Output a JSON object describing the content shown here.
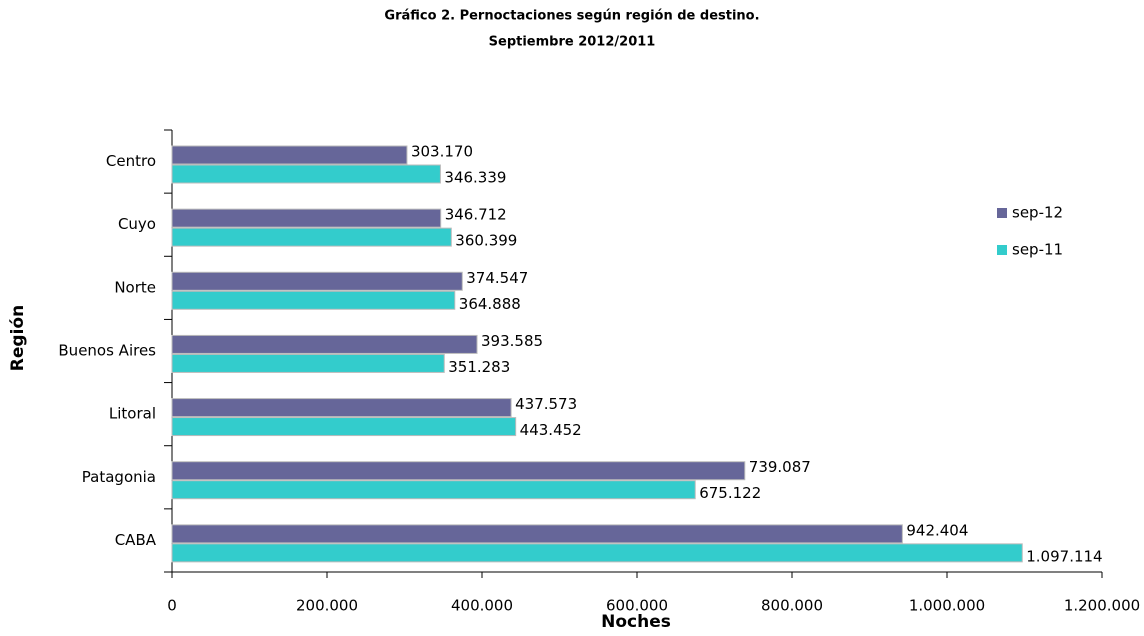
{
  "chart_data": {
    "type": "hbar",
    "title": "Gráfico 2. Pernoctaciones según región de destino.",
    "subtitle": "Septiembre 2012/2011",
    "x_label": "Noches",
    "y_label": "Región",
    "categories": [
      "Centro",
      "Cuyo",
      "Norte",
      "Buenos Aires",
      "Litoral",
      "Patagonia",
      "CABA"
    ],
    "series": [
      {
        "name": "sep-12",
        "color": "#666699",
        "values": [
          303170,
          346712,
          374547,
          393585,
          437573,
          739087,
          942404
        ],
        "value_labels": [
          "303.170",
          "346.712",
          "374.547",
          "393.585",
          "437.573",
          "739.087",
          "942.404"
        ]
      },
      {
        "name": "sep-11",
        "color": "#33cccc",
        "values": [
          346339,
          360399,
          364888,
          351283,
          443452,
          675122,
          1097114
        ],
        "value_labels": [
          "346.339",
          "360.399",
          "364.888",
          "351.283",
          "443.452",
          "675.122",
          "1.097.114"
        ]
      }
    ],
    "xlim": [
      0,
      1200000
    ],
    "xticks": [
      0,
      {
        "value": 200000,
        "label": "200.000"
      },
      {
        "value": 400000,
        "label": "400.000"
      },
      {
        "value": 600000,
        "label": "600.000"
      },
      {
        "value": 800000,
        "label": "800.000"
      },
      {
        "value": 1000000,
        "label": "1.000.000"
      },
      {
        "value": 1200000,
        "label": "1.200.000"
      }
    ],
    "legend": "right"
  }
}
